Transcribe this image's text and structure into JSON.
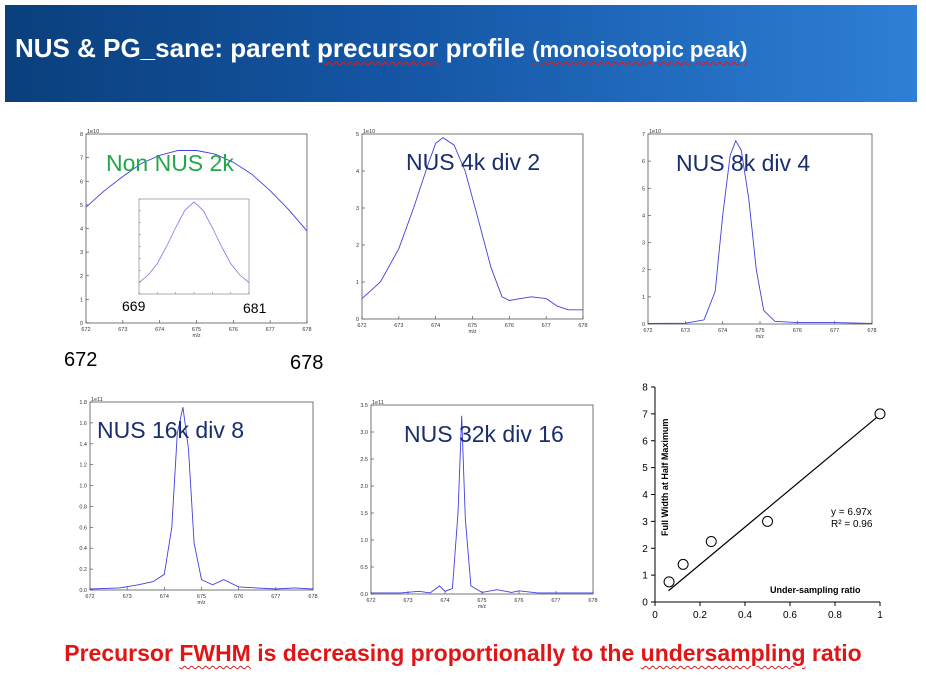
{
  "slide": {
    "title_prefix": "NUS & PG_sane: parent ",
    "title_word": "precursor",
    "title_mid": " profile ",
    "title_sub": "(monoisotopic peak)",
    "footer_prefix": "Precursor ",
    "footer_word1": "FWHM",
    "footer_mid": " is decreasing proportionally to the ",
    "footer_word2": "undersampling",
    "footer_suffix": " ratio",
    "outer_x_left": "672",
    "outer_x_right": "678",
    "line_color": "#4040e0",
    "title_bar_color": "#1557a6",
    "footer_color": "#e01515"
  },
  "chart_data": [
    {
      "type": "line",
      "title": "Non NUS 2k",
      "title_color": "#22a84a",
      "exponent": "1e10",
      "xlabel": "m/z",
      "xlim": [
        672,
        678
      ],
      "ylim": [
        0,
        8
      ],
      "x_ticks": [
        "672",
        "673",
        "674",
        "675",
        "676",
        "677",
        "678"
      ],
      "y_ticks": [
        "0",
        "1",
        "2",
        "3",
        "4",
        "5",
        "6",
        "7",
        "8"
      ],
      "x": [
        672,
        672.5,
        673,
        673.5,
        674,
        674.5,
        675,
        675.5,
        676,
        676.5,
        677,
        677.5,
        678
      ],
      "y": [
        4.9,
        5.6,
        6.2,
        6.75,
        7.1,
        7.3,
        7.3,
        7.15,
        6.8,
        6.3,
        5.6,
        4.8,
        3.9
      ],
      "inset": {
        "xlim": [
          669,
          681
        ],
        "x_left_label": "669",
        "x_right_label": "681",
        "x": [
          669,
          670,
          671,
          672,
          673,
          674,
          675,
          676,
          677,
          678,
          679,
          680,
          681
        ],
        "y": [
          0.12,
          0.2,
          0.32,
          0.5,
          0.7,
          0.88,
          0.97,
          0.88,
          0.7,
          0.5,
          0.32,
          0.2,
          0.12
        ]
      }
    },
    {
      "type": "line",
      "title": "NUS 4k div 2",
      "title_color": "#1a2e6e",
      "exponent": "1e10",
      "xlabel": "m/z",
      "xlim": [
        672,
        678
      ],
      "ylim": [
        0,
        5
      ],
      "x_ticks": [
        "672",
        "673",
        "674",
        "675",
        "676",
        "677",
        "678"
      ],
      "y_ticks": [
        "0",
        "1",
        "2",
        "3",
        "4",
        "5"
      ],
      "x": [
        672,
        672.5,
        673,
        673.4,
        673.8,
        674.0,
        674.2,
        674.5,
        674.8,
        675.1,
        675.5,
        675.8,
        676.0,
        676.3,
        676.6,
        677.0,
        677.3,
        677.6,
        678
      ],
      "y": [
        0.55,
        1.0,
        1.9,
        3.0,
        4.2,
        4.75,
        4.9,
        4.7,
        4.0,
        2.9,
        1.4,
        0.6,
        0.5,
        0.55,
        0.6,
        0.55,
        0.35,
        0.25,
        0.25
      ]
    },
    {
      "type": "line",
      "title": "NUS 8k div 4",
      "title_color": "#1a2e6e",
      "exponent": "1e10",
      "xlabel": "m/z",
      "xlim": [
        672,
        678
      ],
      "ylim": [
        0,
        7
      ],
      "x_ticks": [
        "672",
        "673",
        "674",
        "675",
        "676",
        "677",
        "678"
      ],
      "y_ticks": [
        "0",
        "1",
        "2",
        "3",
        "4",
        "5",
        "6",
        "7"
      ],
      "x": [
        672,
        673,
        673.5,
        673.8,
        674.0,
        674.2,
        674.35,
        674.5,
        674.7,
        674.9,
        675.1,
        675.4,
        676,
        677,
        678
      ],
      "y": [
        0.02,
        0.03,
        0.15,
        1.2,
        4.0,
        6.2,
        6.75,
        6.4,
        4.6,
        2.0,
        0.5,
        0.1,
        0.05,
        0.05,
        0.02
      ]
    },
    {
      "type": "line",
      "title": "NUS 16k div 8",
      "title_color": "#1a2e6e",
      "exponent": "1e11",
      "xlabel": "m/z",
      "xlim": [
        672,
        678
      ],
      "ylim": [
        0,
        1.8
      ],
      "x_ticks": [
        "672",
        "673",
        "674",
        "675",
        "676",
        "677",
        "678"
      ],
      "y_ticks": [
        "0.0",
        "0.2",
        "0.4",
        "0.6",
        "0.8",
        "1.0",
        "1.2",
        "1.4",
        "1.6",
        "1.8"
      ],
      "x": [
        672,
        672.8,
        673.3,
        673.7,
        674.0,
        674.2,
        674.35,
        674.5,
        674.65,
        674.8,
        675.0,
        675.3,
        675.6,
        676,
        677,
        677.5,
        678
      ],
      "y": [
        0.01,
        0.02,
        0.05,
        0.08,
        0.15,
        0.6,
        1.5,
        1.75,
        1.35,
        0.45,
        0.1,
        0.05,
        0.1,
        0.03,
        0.01,
        0.02,
        0.01
      ]
    },
    {
      "type": "line",
      "title": "NUS 32k div 16",
      "title_color": "#1a2e6e",
      "exponent": "1e11",
      "xlabel": "m/z",
      "xlim": [
        672,
        678
      ],
      "ylim": [
        0,
        3.5
      ],
      "x_ticks": [
        "672",
        "673",
        "674",
        "675",
        "676",
        "677",
        "678"
      ],
      "y_ticks": [
        "0.0",
        "0.5",
        "1.0",
        "1.5",
        "2.0",
        "2.5",
        "3.0",
        "3.5"
      ],
      "x": [
        672,
        672.8,
        673.3,
        673.6,
        673.85,
        674.0,
        674.2,
        674.35,
        674.45,
        674.55,
        674.7,
        675.0,
        675.4,
        675.8,
        676,
        676.5,
        677,
        678
      ],
      "y": [
        0.02,
        0.02,
        0.05,
        0.02,
        0.15,
        0.05,
        0.1,
        1.5,
        3.3,
        1.4,
        0.15,
        0.03,
        0.08,
        0.03,
        0.06,
        0.02,
        0.02,
        0.02
      ]
    },
    {
      "type": "scatter",
      "title": "",
      "xlabel": "Under-sampling ratio",
      "ylabel": "Full Width at Half Maximum",
      "xlim": [
        0,
        1
      ],
      "ylim": [
        0,
        8
      ],
      "x_ticks": [
        "0",
        "0.2",
        "0.4",
        "0.6",
        "0.8",
        "1"
      ],
      "y_ticks": [
        "0",
        "1",
        "2",
        "3",
        "4",
        "5",
        "6",
        "7",
        "8"
      ],
      "points_x": [
        0.0625,
        0.125,
        0.25,
        0.5,
        1.0
      ],
      "points_y": [
        0.75,
        1.4,
        2.25,
        3.0,
        7.0
      ],
      "trendline": {
        "slope": 6.97,
        "intercept": 0
      },
      "trendline_x_start": 0.06,
      "equation": "y = 6.97x",
      "r_squared": "R² = 0.96",
      "grid": false
    }
  ]
}
